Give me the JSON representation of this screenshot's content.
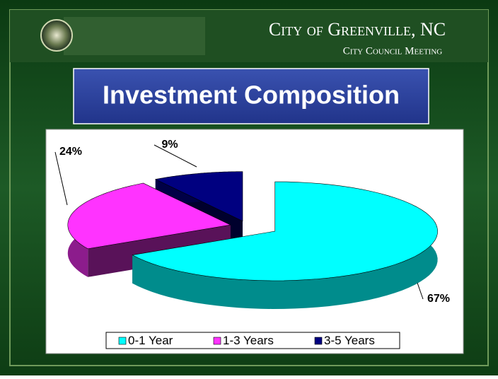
{
  "header": {
    "title": "City of Greenville, NC",
    "subtitle": "City Council Meeting"
  },
  "chart_data": {
    "type": "pie",
    "title": "Investment Composition",
    "categories": [
      "0-1 Year",
      "1-3 Years",
      "3-5 Years"
    ],
    "values": [
      67,
      24,
      9
    ],
    "value_labels": [
      "67%",
      "24%",
      "9%"
    ],
    "colors": [
      "#00ffff",
      "#ff33ff",
      "#000080"
    ],
    "legend": "bottom"
  }
}
